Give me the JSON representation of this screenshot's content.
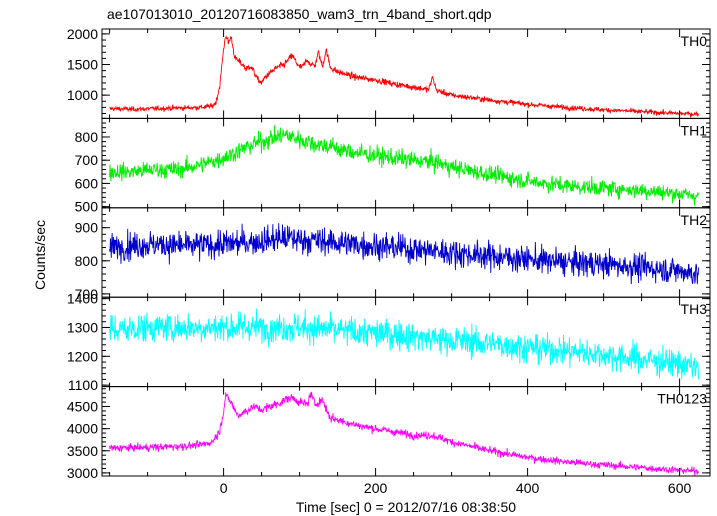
{
  "chart_data": {
    "type": "line",
    "title": "ae107013010_20120716083850_wam3_trn_4band_short.qdp",
    "xlabel": "Time [sec] 0 = 2012/07/16 08:38:50",
    "ylabel": "Counts/sec",
    "xlim": [
      -160,
      640
    ],
    "x_ticks": [
      0,
      200,
      400,
      600
    ],
    "grid": false,
    "panels": [
      {
        "name": "TH0",
        "color": "#ff0000",
        "ylim": [
          620,
          2080
        ],
        "y_ticks": [
          1000,
          1500,
          2000
        ],
        "x": [
          -150,
          -120,
          -90,
          -60,
          -30,
          -15,
          -10,
          -5,
          0,
          3,
          6,
          10,
          15,
          20,
          25,
          30,
          35,
          40,
          45,
          50,
          55,
          60,
          70,
          80,
          90,
          95,
          100,
          105,
          110,
          115,
          120,
          125,
          130,
          135,
          140,
          150,
          175,
          200,
          225,
          250,
          270,
          275,
          280,
          300,
          350,
          400,
          450,
          500,
          550,
          600,
          625
        ],
        "values": [
          780,
          770,
          780,
          790,
          800,
          820,
          880,
          1150,
          1750,
          2000,
          1850,
          1950,
          1600,
          1550,
          1500,
          1420,
          1480,
          1380,
          1250,
          1200,
          1300,
          1350,
          1450,
          1500,
          1650,
          1550,
          1450,
          1480,
          1580,
          1500,
          1480,
          1700,
          1460,
          1750,
          1460,
          1380,
          1290,
          1250,
          1180,
          1130,
          1090,
          1300,
          1080,
          1000,
          920,
          850,
          800,
          760,
          730,
          700,
          690
        ]
      },
      {
        "name": "TH1",
        "color": "#00ee00",
        "ylim": [
          495,
          880
        ],
        "y_ticks": [
          500,
          600,
          700,
          800
        ],
        "x": [
          -150,
          -120,
          -90,
          -60,
          -30,
          0,
          20,
          40,
          60,
          70,
          80,
          90,
          100,
          110,
          120,
          140,
          160,
          180,
          200,
          220,
          250,
          280,
          300,
          350,
          400,
          450,
          500,
          550,
          600,
          625
        ],
        "values": [
          650,
          650,
          660,
          660,
          680,
          710,
          740,
          770,
          790,
          800,
          810,
          800,
          790,
          780,
          770,
          760,
          740,
          730,
          720,
          710,
          700,
          690,
          670,
          640,
          610,
          590,
          580,
          570,
          555,
          545
        ]
      },
      {
        "name": "TH2",
        "color": "#0000cc",
        "ylim": [
          690,
          960
        ],
        "y_ticks": [
          700,
          800,
          900
        ],
        "x": [
          -150,
          -100,
          -50,
          0,
          50,
          80,
          100,
          150,
          200,
          250,
          300,
          350,
          400,
          450,
          500,
          550,
          600,
          625
        ],
        "values": [
          840,
          850,
          845,
          850,
          860,
          870,
          865,
          855,
          845,
          835,
          825,
          815,
          805,
          795,
          790,
          780,
          770,
          760
        ]
      },
      {
        "name": "TH3",
        "color": "#00ffff",
        "ylim": [
          1095,
          1405
        ],
        "y_ticks": [
          1100,
          1200,
          1300,
          1400
        ],
        "x": [
          -150,
          -100,
          -50,
          0,
          50,
          100,
          150,
          200,
          250,
          300,
          350,
          400,
          450,
          500,
          550,
          600,
          625
        ],
        "values": [
          1290,
          1300,
          1300,
          1300,
          1300,
          1300,
          1290,
          1280,
          1270,
          1255,
          1245,
          1230,
          1220,
          1205,
          1190,
          1175,
          1160
        ]
      },
      {
        "name": "TH0123",
        "color": "#ff00ff",
        "ylim": [
          2930,
          4950
        ],
        "y_ticks": [
          3000,
          3500,
          4000,
          4500
        ],
        "x": [
          -150,
          -120,
          -90,
          -60,
          -30,
          -15,
          -5,
          0,
          3,
          6,
          10,
          15,
          20,
          30,
          40,
          50,
          60,
          70,
          80,
          90,
          100,
          110,
          115,
          120,
          130,
          140,
          150,
          175,
          200,
          250,
          275,
          300,
          350,
          400,
          450,
          500,
          550,
          600,
          625
        ],
        "values": [
          3560,
          3570,
          3580,
          3600,
          3630,
          3700,
          3950,
          4400,
          4800,
          4650,
          4600,
          4400,
          4300,
          4400,
          4500,
          4420,
          4500,
          4550,
          4650,
          4700,
          4600,
          4550,
          4800,
          4550,
          4650,
          4250,
          4200,
          4080,
          4000,
          3850,
          3850,
          3700,
          3500,
          3350,
          3250,
          3180,
          3120,
          3060,
          3040
        ]
      }
    ]
  }
}
